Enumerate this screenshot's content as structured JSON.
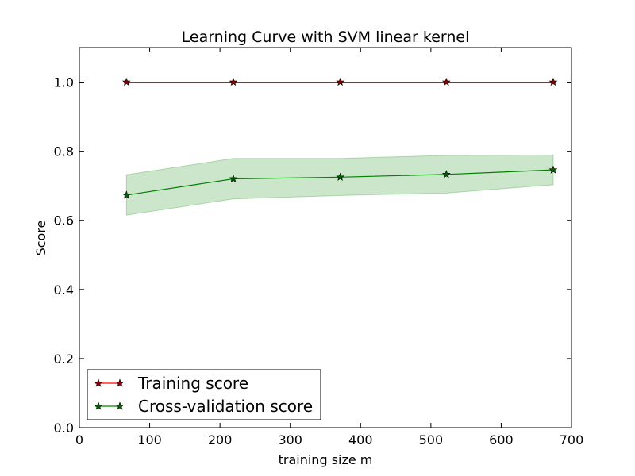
{
  "chart_data": {
    "type": "line",
    "title": "Learning Curve with SVM linear kernel",
    "xlabel": "training size m",
    "ylabel": "Score",
    "xlim": [
      0,
      700
    ],
    "ylim": [
      0.0,
      1.1
    ],
    "xticks": [
      0,
      100,
      200,
      300,
      400,
      500,
      600,
      700
    ],
    "xtick_labels": [
      "0",
      "100",
      "200",
      "300",
      "400",
      "500",
      "600",
      "700"
    ],
    "yticks": [
      0.0,
      0.2,
      0.4,
      0.6,
      0.8,
      1.0
    ],
    "ytick_labels": [
      "0.0",
      "0.2",
      "0.4",
      "0.6",
      "0.8",
      "1.0"
    ],
    "grid": false,
    "legend_position": "lower-left",
    "x": [
      67,
      219,
      371,
      522,
      674
    ],
    "series": [
      {
        "name": "Training score",
        "color": "#ff0000",
        "marker_color": "#8b0000",
        "marker": "star",
        "values": [
          1.0,
          1.0,
          1.0,
          1.0,
          1.0
        ],
        "band_lower": [
          1.0,
          1.0,
          1.0,
          1.0,
          1.0
        ],
        "band_upper": [
          1.0,
          1.0,
          1.0,
          1.0,
          1.0
        ]
      },
      {
        "name": "Cross-validation score",
        "color": "#008000",
        "marker_color": "#006400",
        "marker": "star",
        "band_color": "#008000",
        "values": [
          0.673,
          0.72,
          0.725,
          0.733,
          0.746
        ],
        "band_lower": [
          0.615,
          0.662,
          0.672,
          0.679,
          0.703
        ],
        "band_upper": [
          0.732,
          0.779,
          0.779,
          0.788,
          0.789
        ]
      }
    ]
  }
}
